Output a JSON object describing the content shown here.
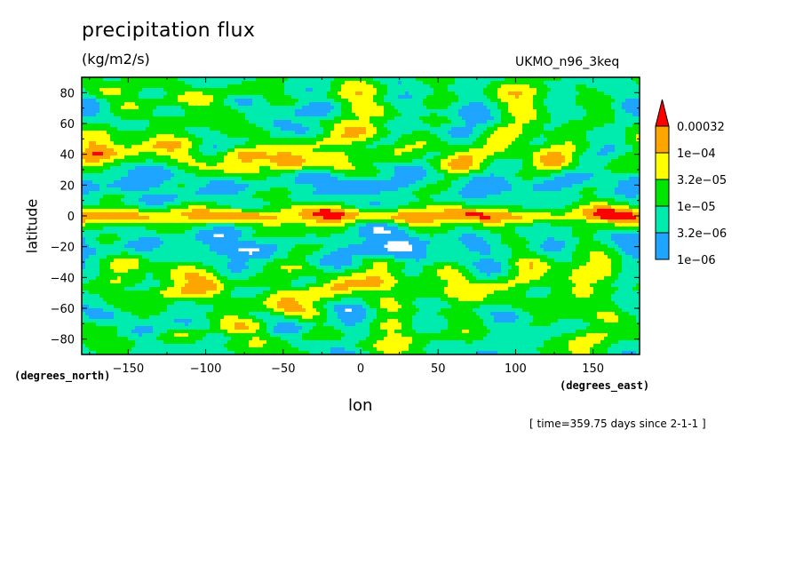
{
  "chart_data": {
    "type": "heatmap",
    "title": "precipitation flux",
    "units": "(kg/m2/s)",
    "model": "UKMO_n96_3keq",
    "xlabel": "lon",
    "ylabel": "latitude",
    "x_units": "(degrees_east)",
    "y_units": "(degrees_north)",
    "timestamp": "[ time=359.75 days since 2-1-1 ]",
    "xlim": [
      -180,
      180
    ],
    "ylim": [
      -90,
      90
    ],
    "x_ticks": [
      -150,
      -100,
      -50,
      0,
      50,
      100,
      150
    ],
    "y_ticks": [
      80,
      60,
      40,
      20,
      0,
      -20,
      -40,
      -60,
      -80
    ],
    "colorbar": {
      "levels": [
        "1e-06",
        "3.2e-06",
        "1e-05",
        "3.2e-05",
        "1e-04",
        "0.00032"
      ],
      "colors": [
        "#ffffff",
        "#1ea5ff",
        "#00ebae",
        "#00e600",
        "#ffff00",
        "#ffa500",
        "#ff0000"
      ],
      "extend": "max"
    },
    "features": {
      "itcz_latitude": 0,
      "storm_tracks": [
        {
          "lon": -170,
          "lat": 40
        },
        {
          "lon": -115,
          "lat": 40
        },
        {
          "lon": -75,
          "lat": 35
        },
        {
          "lon": -45,
          "lat": 35
        },
        {
          "lon": -15,
          "lat": 35
        },
        {
          "lon": 65,
          "lat": 35
        },
        {
          "lon": 125,
          "lat": 35
        },
        {
          "lon": -150,
          "lat": -30
        },
        {
          "lon": -100,
          "lat": -45
        },
        {
          "lon": -50,
          "lat": -55
        },
        {
          "lon": 15,
          "lat": -45
        },
        {
          "lon": 65,
          "lat": -45
        },
        {
          "lon": 110,
          "lat": -28
        },
        {
          "lon": 160,
          "lat": -25
        }
      ]
    }
  }
}
